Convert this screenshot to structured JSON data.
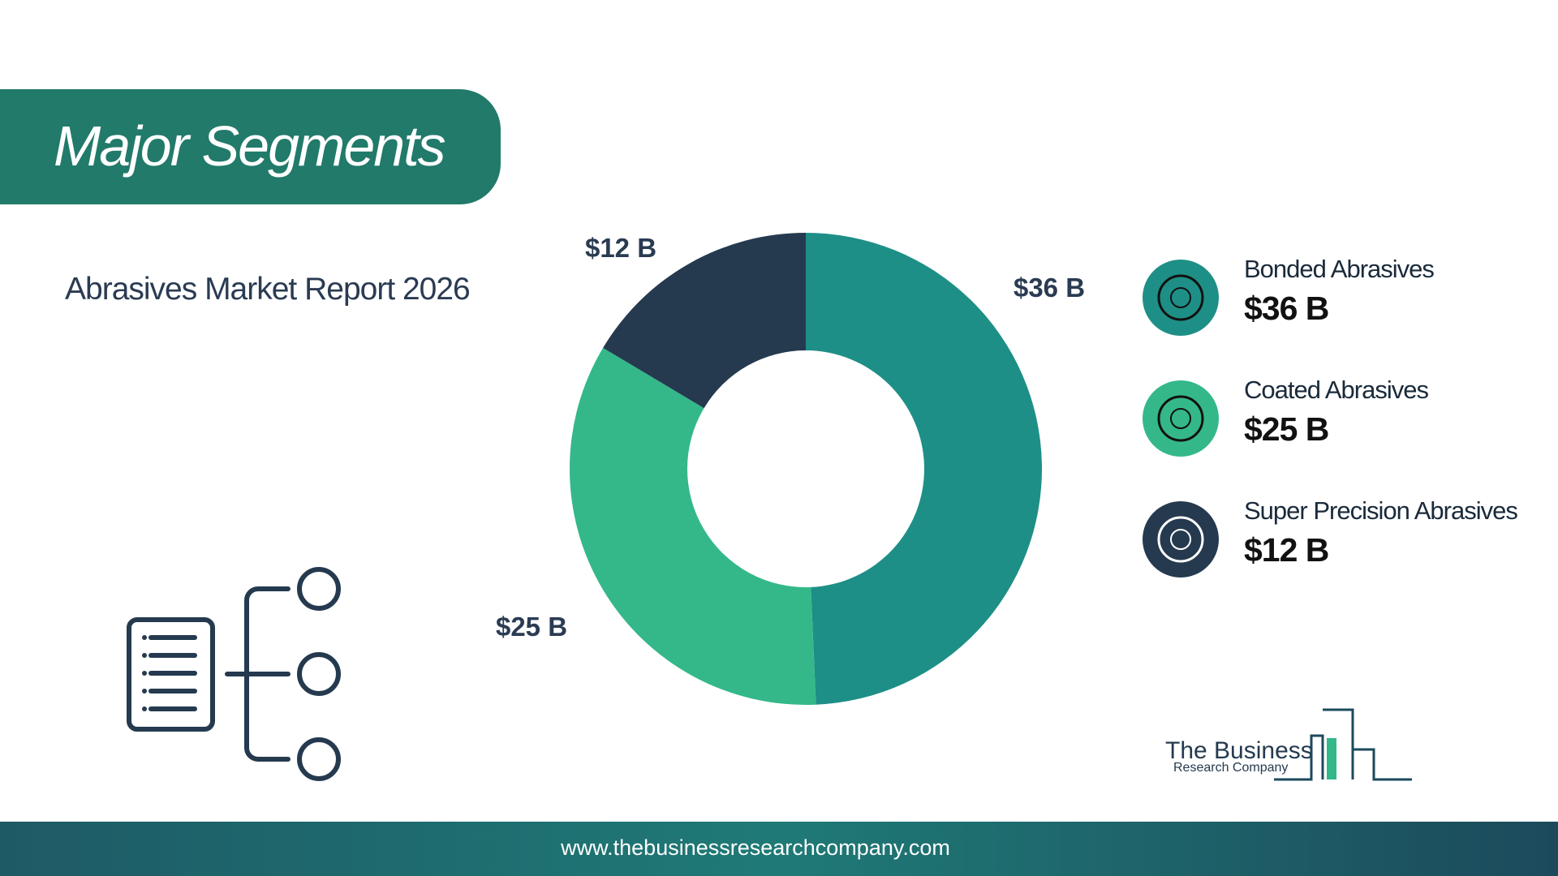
{
  "header": {
    "title": "Major Segments",
    "subtitle": "Abrasives Market Report 2026"
  },
  "chart_data": {
    "type": "donut",
    "categories": [
      "Bonded Abrasives",
      "Coated Abrasives",
      "Super Precision Abrasives"
    ],
    "values": [
      36,
      25,
      12
    ],
    "value_labels": [
      "$36 B",
      "$25 B",
      "$12 B"
    ],
    "colors": [
      "#1e8f86",
      "#34b889",
      "#253a4f"
    ]
  },
  "logo": {
    "line1": "The Business",
    "line2": "Research Company"
  },
  "footer": {
    "url": "www.thebusinessresearchcompany.com"
  }
}
